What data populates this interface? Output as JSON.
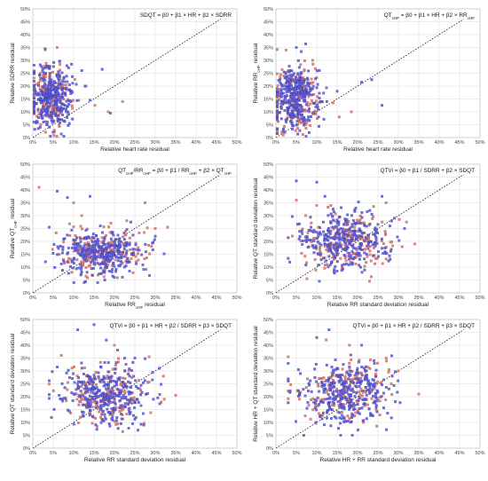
{
  "colors": {
    "series_red": "#d97a6f",
    "series_blue": "#5f5fe0",
    "grid": "#d9d9d9",
    "diagonal": "#000000"
  },
  "chart_data": [
    {
      "type": "scatter",
      "title": "SDQT = β0 + β1 × HR + β2 × SDRR",
      "xlabel": "Relative heart rate residual",
      "ylabel": "Relative SDRR residual",
      "xlim": [
        0,
        50
      ],
      "ylim": [
        0,
        50
      ],
      "xticks": [
        "0%",
        "5%",
        "10%",
        "15%",
        "20%",
        "25%",
        "30%",
        "35%",
        "40%",
        "45%",
        "50%"
      ],
      "yticks": [
        "0%",
        "5%",
        "10%",
        "15%",
        "20%",
        "25%",
        "30%",
        "35%",
        "40%",
        "45%",
        "50%"
      ],
      "grid": true,
      "reference_line": "y = x (dashed)",
      "cloud": {
        "x_center": 4.5,
        "x_spread": 2.6,
        "y_center": 16.0,
        "y_spread": 6.0,
        "x_min": 0.3,
        "y_min": 0.5,
        "n_red": 160,
        "n_blue": 320
      },
      "series": [
        {
          "color": "#d97a6f",
          "points": [
            [
              18.5,
              10.0
            ],
            [
              15.2,
              12.5
            ],
            [
              13.0,
              20.0
            ],
            [
              22.0,
              14.0
            ],
            [
              6.0,
              35.0
            ]
          ]
        },
        {
          "color": "#5f5fe0",
          "points": [
            [
              17.0,
              26.5
            ],
            [
              12.0,
              26.0
            ],
            [
              9.5,
              28.5
            ],
            [
              19.0,
              9.5
            ],
            [
              14.0,
              14.5
            ],
            [
              3.0,
              34.5
            ]
          ]
        }
      ]
    },
    {
      "type": "scatter",
      "title": "QT",
      "title_sub1": "cHF",
      "title_mid": " = β0 + β1 × HR + β2 × RR",
      "title_sub2": "cHF",
      "xlabel": "Relative heart rate residual",
      "ylabel": "Relative RR",
      "ylabel_sub": "cHF",
      "ylabel_tail": " residual",
      "xlim": [
        0,
        50
      ],
      "ylim": [
        0,
        50
      ],
      "xticks": [
        "0%",
        "5%",
        "10%",
        "15%",
        "20%",
        "25%",
        "30%",
        "35%",
        "40%",
        "45%",
        "50%"
      ],
      "yticks": [
        "0%",
        "5%",
        "10%",
        "15%",
        "20%",
        "25%",
        "30%",
        "35%",
        "40%",
        "45%",
        "50%"
      ],
      "grid": true,
      "reference_line": "y = x (dashed)",
      "cloud": {
        "x_center": 4.8,
        "x_spread": 2.7,
        "y_center": 15.5,
        "y_spread": 6.5,
        "x_min": 0.3,
        "y_min": 0.5,
        "n_red": 160,
        "n_blue": 320
      },
      "series": [
        {
          "color": "#d97a6f",
          "points": [
            [
              15.5,
              8.0
            ],
            [
              14.0,
              13.5
            ],
            [
              18.5,
              10.0
            ],
            [
              9.0,
              30.0
            ]
          ]
        },
        {
          "color": "#5f5fe0",
          "points": [
            [
              23.5,
              22.5
            ],
            [
              21.0,
              21.5
            ],
            [
              26.0,
              12.5
            ],
            [
              15.0,
              18.0
            ],
            [
              5.0,
              35.0
            ]
          ]
        }
      ]
    },
    {
      "type": "scatter",
      "title": "QT",
      "title_sub1": "cHF",
      "title_mid": "/RR",
      "title_sub2": "cHF",
      "title_mid2": " = β0 + β1 / RR",
      "title_sub3": "cHF",
      "title_tail": " + β2 × QT",
      "title_sub4": "cHF",
      "xlabel": "Relative RR",
      "xlabel_sub": "cHF",
      "xlabel_tail": " residual",
      "ylabel": "Relative QT",
      "ylabel_sub": "cHF",
      "ylabel_tail": " residual",
      "xlim": [
        0,
        50
      ],
      "ylim": [
        0,
        50
      ],
      "xticks": [
        "0%",
        "5%",
        "10%",
        "15%",
        "20%",
        "25%",
        "30%",
        "35%",
        "40%",
        "45%",
        "50%"
      ],
      "yticks": [
        "0%",
        "5%",
        "10%",
        "15%",
        "20%",
        "25%",
        "30%",
        "35%",
        "40%",
        "45%",
        "50%"
      ],
      "grid": true,
      "reference_line": "y = x (dashed)",
      "cloud": {
        "x_center": 17.0,
        "x_spread": 5.0,
        "y_center": 15.5,
        "y_spread": 4.2,
        "x_min": 3.0,
        "y_min": 4.0,
        "n_red": 160,
        "n_blue": 320
      },
      "series": [
        {
          "color": "#d97a6f",
          "points": [
            [
              1.5,
              41.0
            ],
            [
              10.0,
              35.0
            ],
            [
              12.0,
              30.0
            ],
            [
              30.0,
              25.0
            ],
            [
              33.0,
              25.5
            ],
            [
              27.5,
              35.0
            ]
          ]
        },
        {
          "color": "#5f5fe0",
          "points": [
            [
              6.0,
              39.5
            ],
            [
              8.5,
              37.0
            ],
            [
              14.0,
              37.5
            ],
            [
              30.0,
              22.0
            ],
            [
              24.0,
              27.5
            ],
            [
              4.0,
              25.5
            ]
          ]
        }
      ]
    },
    {
      "type": "scatter",
      "title": "QTVi = β0 + β1 / SDRR + β2 × SDQT",
      "xlabel": "Relative RR standard deviation residual",
      "ylabel": "Relative QT standard deviation residual",
      "xlim": [
        0,
        50
      ],
      "ylim": [
        0,
        50
      ],
      "xticks": [
        "0%",
        "5%",
        "10%",
        "15%",
        "20%",
        "25%",
        "30%",
        "35%",
        "40%",
        "45%",
        "50%"
      ],
      "yticks": [
        "0%",
        "5%",
        "10%",
        "15%",
        "20%",
        "25%",
        "30%",
        "35%",
        "40%",
        "45%",
        "50%"
      ],
      "grid": true,
      "reference_line": "y = x (dashed)",
      "cloud": {
        "x_center": 17.5,
        "x_spread": 5.5,
        "y_center": 20.0,
        "y_spread": 5.5,
        "x_min": 3.0,
        "y_min": 4.5,
        "n_red": 170,
        "n_blue": 320
      },
      "series": [
        {
          "color": "#d97a6f",
          "points": [
            [
              34.0,
              19.0
            ],
            [
              32.0,
              27.5
            ],
            [
              5.0,
              36.0
            ],
            [
              10.0,
              34.0
            ],
            [
              27.0,
              35.0
            ]
          ]
        },
        {
          "color": "#5f5fe0",
          "points": [
            [
              5.0,
              43.5
            ],
            [
              10.0,
              43.0
            ],
            [
              12.0,
              37.5
            ],
            [
              23.0,
              32.0
            ],
            [
              26.0,
              37.5
            ],
            [
              29.0,
              29.0
            ],
            [
              31.5,
              25.0
            ]
          ]
        }
      ]
    },
    {
      "type": "scatter",
      "title": "QTVi = β0 + β1 × HR + β2 / SDRR + β3 × SDQT",
      "xlabel": "Relative RR standard deviation residual",
      "ylabel": "Relative QT standard deviation residual",
      "xlim": [
        0,
        50
      ],
      "ylim": [
        0,
        50
      ],
      "xticks": [
        "0%",
        "5%",
        "10%",
        "15%",
        "20%",
        "25%",
        "30%",
        "35%",
        "40%",
        "45%",
        "50%"
      ],
      "yticks": [
        "0%",
        "5%",
        "10%",
        "15%",
        "20%",
        "25%",
        "30%",
        "35%",
        "40%",
        "45%",
        "50%"
      ],
      "grid": true,
      "reference_line": "y = x (dashed)",
      "cloud": {
        "x_center": 17.5,
        "x_spread": 5.5,
        "y_center": 21.0,
        "y_spread": 6.0,
        "x_min": 4.0,
        "y_min": 5.0,
        "n_red": 170,
        "n_blue": 320
      },
      "series": [
        {
          "color": "#d97a6f",
          "points": [
            [
              35.0,
              20.5
            ],
            [
              32.0,
              28.0
            ],
            [
              7.0,
              36.0
            ],
            [
              20.0,
              40.0
            ],
            [
              28.5,
              35.5
            ]
          ]
        },
        {
          "color": "#5f5fe0",
          "points": [
            [
              15.0,
              48.0
            ],
            [
              11.0,
              46.0
            ],
            [
              18.0,
              42.0
            ],
            [
              25.0,
              35.0
            ],
            [
              31.0,
              31.0
            ],
            [
              6.0,
              31.5
            ]
          ]
        }
      ]
    },
    {
      "type": "scatter",
      "title": "QTVi = β0 + β1 × HR + β2 / SDRR + β3 × SDQT",
      "xlabel": "Relative HR + RR standard deviation residual",
      "ylabel": "Relative HR + QT standard deviation residual",
      "xlim": [
        0,
        50
      ],
      "ylim": [
        0,
        50
      ],
      "xticks": [
        "0%",
        "5%",
        "10%",
        "15%",
        "20%",
        "25%",
        "30%",
        "35%",
        "40%",
        "45%",
        "50%"
      ],
      "yticks": [
        "0%",
        "5%",
        "10%",
        "15%",
        "20%",
        "25%",
        "30%",
        "35%",
        "40%",
        "45%",
        "50%"
      ],
      "grid": true,
      "reference_line": "y = x (dashed)",
      "cloud": {
        "x_center": 17.0,
        "x_spread": 5.5,
        "y_center": 21.5,
        "y_spread": 6.0,
        "x_min": 3.0,
        "y_min": 5.0,
        "n_red": 170,
        "n_blue": 320
      },
      "series": [
        {
          "color": "#d97a6f",
          "points": [
            [
              35.0,
              21.0
            ],
            [
              30.0,
              30.0
            ],
            [
              3.0,
              35.5
            ],
            [
              18.0,
              40.0
            ],
            [
              27.0,
              35.0
            ]
          ]
        },
        {
          "color": "#5f5fe0",
          "points": [
            [
              13.0,
              46.0
            ],
            [
              10.0,
              43.0
            ],
            [
              21.0,
              40.0
            ],
            [
              24.0,
              34.0
            ],
            [
              28.5,
              28.0
            ],
            [
              6.0,
              29.0
            ]
          ]
        }
      ]
    }
  ]
}
